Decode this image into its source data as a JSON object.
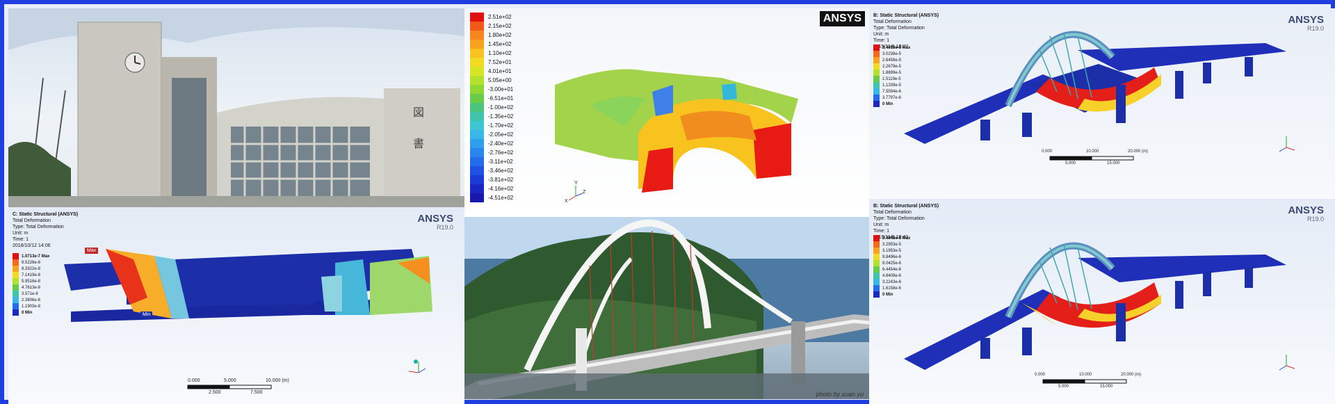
{
  "colors": {
    "frame": "#1f3ee0",
    "max_red": "#e31a1c",
    "min_blue": "#1c2fa8"
  },
  "contour_panel": {
    "logo": "ANSYS",
    "legend": [
      {
        "label": "2.51e+02",
        "color": "#e01010"
      },
      {
        "label": "2.15e+02",
        "color": "#f25a1a"
      },
      {
        "label": "1.80e+02",
        "color": "#f7861e"
      },
      {
        "label": "1.45e+02",
        "color": "#f8a21e"
      },
      {
        "label": "1.10e+02",
        "color": "#f9c21f"
      },
      {
        "label": "7.52e+01",
        "color": "#f2dc22"
      },
      {
        "label": "4.01e+01",
        "color": "#d7e624"
      },
      {
        "label": "5.05e+00",
        "color": "#b4e12a"
      },
      {
        "label": "-3.00e+01",
        "color": "#8fd834"
      },
      {
        "label": "-6.51e+01",
        "color": "#6acb4a"
      },
      {
        "label": "-1.00e+02",
        "color": "#4bc57c"
      },
      {
        "label": "-1.35e+02",
        "color": "#40c4ac"
      },
      {
        "label": "-1.70e+02",
        "color": "#3ec6d4"
      },
      {
        "label": "-2.05e+02",
        "color": "#39b7e8"
      },
      {
        "label": "-2.40e+02",
        "color": "#2f9fec"
      },
      {
        "label": "-2.76e+02",
        "color": "#2886ee"
      },
      {
        "label": "-3.11e+02",
        "color": "#236ceb"
      },
      {
        "label": "-3.46e+02",
        "color": "#1f52e4"
      },
      {
        "label": "-3.81e+02",
        "color": "#1c3bd6"
      },
      {
        "label": "-4.16e+02",
        "color": "#1a27c2"
      },
      {
        "label": "-4.51e+02",
        "color": "#1818ad"
      }
    ],
    "axes": {
      "y": "Y",
      "z": "Z",
      "x": "X"
    }
  },
  "ansys_bl": {
    "logo": "ANSYS",
    "version": "R19.0",
    "info": [
      "C: Static Structural (ANSYS)",
      "Total Deformation",
      "Type: Total Deformation",
      "Unit: m",
      "Time: 1",
      "2018/10/12 14:06"
    ],
    "legend": [
      "1.0713e-7 Max",
      "9.5226e-8",
      "8.3322e-8",
      "7.1419e-8",
      "5.9516e-8",
      "4.7613e-8",
      "3.571e-8",
      "2.3806e-8",
      "1.1903e-8",
      "0 Min"
    ],
    "max_label": "Max",
    "min_label": "Min",
    "scale_top": [
      "0.000",
      "5.000",
      "10.000 (m)"
    ],
    "scale_bottom": [
      "2.500",
      "7.500"
    ]
  },
  "ansys_tr": {
    "logo": "ANSYS",
    "version": "R19.0",
    "info": [
      "B: Static Structural (ANSYS)",
      "Total Deformation",
      "Type: Total Deformation",
      "Unit: m",
      "Time: 1",
      "2019/11/6 19:07"
    ],
    "legend": [
      "3.4018e-5 Max",
      "3.0238e-5",
      "2.6458e-5",
      "2.2679e-5",
      "1.8899e-5",
      "1.5119e-5",
      "1.1339e-5",
      "7.5594e-6",
      "3.7797e-6",
      "0 Min"
    ],
    "scale_top": [
      "0.000",
      "10.000",
      "20.000 (m)"
    ],
    "scale_bottom": [
      "5.000",
      "15.000"
    ]
  },
  "ansys_br": {
    "logo": "ANSYS",
    "version": "R19.0",
    "info": [
      "B: Static Structural (ANSYS)",
      "Total Deformation",
      "Type: Total Deformation",
      "Unit: m",
      "Time: 1",
      "2019/11/6 19:43"
    ],
    "legend": [
      "3.4948e-5 Max",
      "3.2953e-5",
      "3.1953e-5",
      "9.8496e-6",
      "8.0425e-6",
      "6.4454e-6",
      "4.8409e-6",
      "3.2243e-6",
      "1.6158e-6",
      "0 Min"
    ],
    "scale_top": [
      "0.000",
      "10.000",
      "20.000 (m)"
    ],
    "scale_bottom": [
      "5.000",
      "15.000"
    ]
  },
  "bridge_photo": {
    "credit": "photo by xuan yu"
  }
}
